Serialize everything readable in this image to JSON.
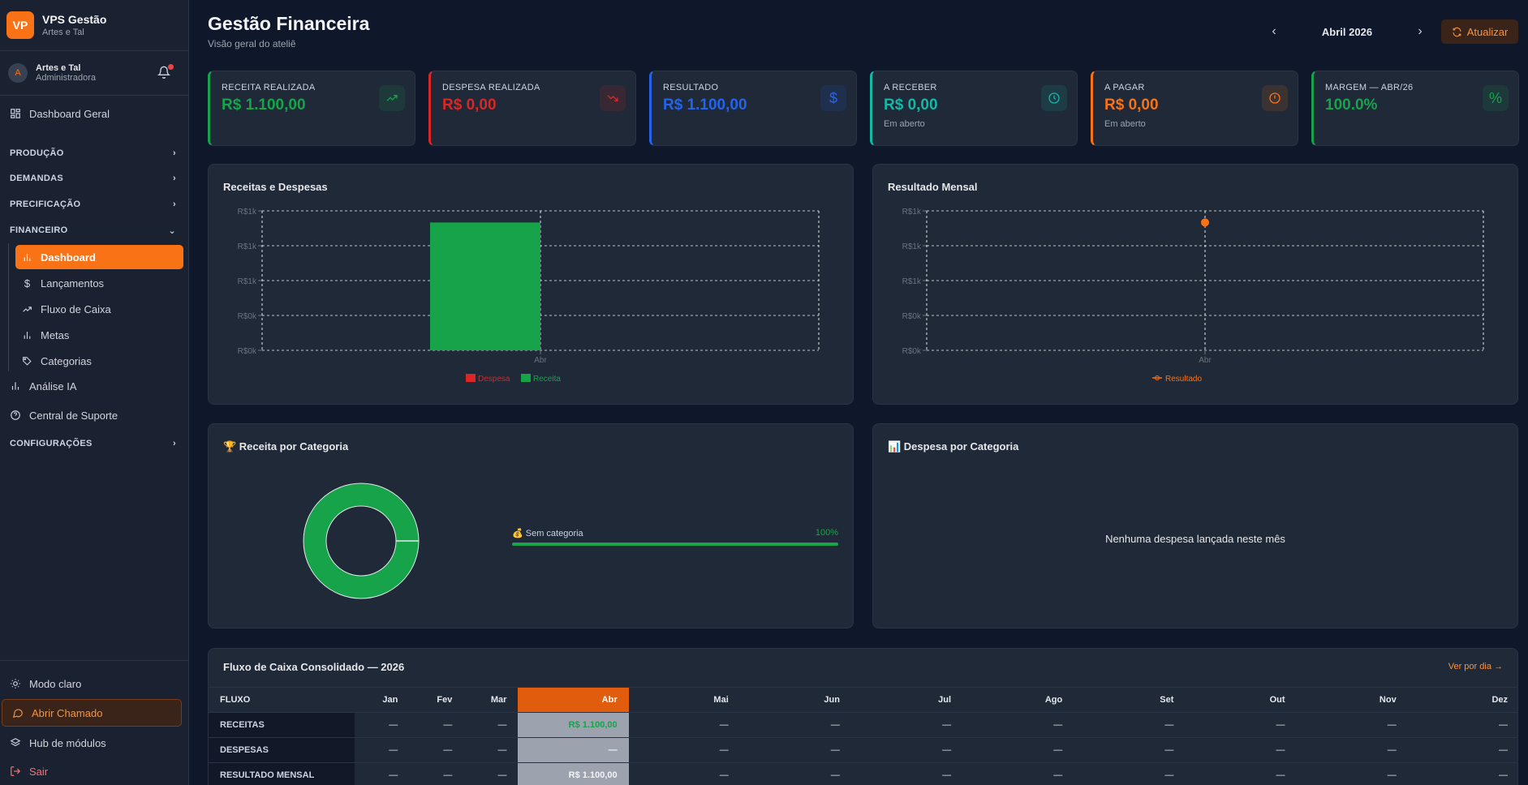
{
  "brand": {
    "logo": "VP",
    "title": "VPS Gestão",
    "subtitle": "Artes e Tal"
  },
  "user": {
    "initial": "A",
    "name": "Artes e Tal",
    "role": "Administradora"
  },
  "nav": {
    "dashboard_geral": "Dashboard Geral",
    "sections": {
      "producao": "PRODUÇÃO",
      "demandas": "DEMANDAS",
      "precificacao": "PRECIFICAÇÃO",
      "financeiro": "FINANCEIRO",
      "configuracoes": "CONFIGURAÇÕES"
    },
    "financeiro_items": [
      "Dashboard",
      "Lançamentos",
      "Fluxo de Caixa",
      "Metas",
      "Categorias"
    ],
    "analise_ia": "Análise IA",
    "suporte": "Central de Suporte"
  },
  "footer": {
    "modo": "Modo claro",
    "chamado": "Abrir Chamado",
    "hub": "Hub de módulos",
    "sair": "Sair"
  },
  "header": {
    "title": "Gestão Financeira",
    "subtitle": "Visão geral do ateliê",
    "month": "Abril 2026",
    "refresh": "Atualizar"
  },
  "kpis": [
    {
      "label": "RECEITA REALIZADA",
      "value": "R$ 1.100,00",
      "sub": "",
      "color": "#16a34a",
      "icon": "trending-up-icon"
    },
    {
      "label": "DESPESA REALIZADA",
      "value": "R$ 0,00",
      "sub": "",
      "color": "#dc2626",
      "icon": "trending-down-icon"
    },
    {
      "label": "RESULTADO",
      "value": "R$ 1.100,00",
      "sub": "",
      "color": "#2563eb",
      "icon": "dollar-icon"
    },
    {
      "label": "A RECEBER",
      "value": "R$ 0,00",
      "sub": "Em aberto",
      "color": "#14b8a6",
      "icon": "clock-icon"
    },
    {
      "label": "A PAGAR",
      "value": "R$ 0,00",
      "sub": "Em aberto",
      "color": "#f97316",
      "icon": "alert-icon"
    },
    {
      "label": "MARGEM — ABR/26",
      "value": "100.0%",
      "sub": "",
      "color": "#16a34a",
      "icon": "percent-icon"
    }
  ],
  "charts": {
    "receitas_despesas": {
      "title": "Receitas e Despesas",
      "chart_data": {
        "type": "bar",
        "categories": [
          "Abr"
        ],
        "series": [
          {
            "name": "Despesa",
            "values": [
              0
            ],
            "color": "#dc2626"
          },
          {
            "name": "Receita",
            "values": [
              1100
            ],
            "color": "#16a34a"
          }
        ],
        "y_ticks": [
          "R$1k",
          "R$1k",
          "R$1k",
          "R$0k",
          "R$0k"
        ],
        "ylim": [
          0,
          1200
        ]
      }
    },
    "resultado_mensal": {
      "title": "Resultado Mensal",
      "chart_data": {
        "type": "line",
        "categories": [
          "Abr"
        ],
        "series": [
          {
            "name": "Resultado",
            "values": [
              1100
            ],
            "color": "#f97316"
          }
        ],
        "y_ticks": [
          "R$1k",
          "R$1k",
          "R$1k",
          "R$0k",
          "R$0k"
        ],
        "ylim": [
          0,
          1200
        ]
      }
    }
  },
  "receita_categoria": {
    "title": "🏆 Receita por Categoria",
    "items": [
      {
        "label": "💰 Sem categoria",
        "percent": "100%",
        "share": 100
      }
    ]
  },
  "despesa_categoria": {
    "title": "📊 Despesa por Categoria",
    "empty": "Nenhuma despesa lançada neste mês"
  },
  "fluxo": {
    "title": "Fluxo de Caixa Consolidado — 2026",
    "link": "Ver por dia →",
    "headers": [
      "FLUXO",
      "Jan",
      "Fev",
      "Mar",
      "Abr",
      "Mai",
      "Jun",
      "Jul",
      "Ago",
      "Set",
      "Out",
      "Nov",
      "Dez"
    ],
    "rows": [
      [
        "RECEITAS",
        "—",
        "—",
        "—",
        "R$ 1.100,00",
        "—",
        "—",
        "—",
        "—",
        "—",
        "—",
        "—",
        "—"
      ],
      [
        "DESPESAS",
        "—",
        "—",
        "—",
        "—",
        "—",
        "—",
        "—",
        "—",
        "—",
        "—",
        "—",
        "—"
      ],
      [
        "RESULTADO MENSAL",
        "—",
        "—",
        "—",
        "R$ 1.100,00",
        "—",
        "—",
        "—",
        "—",
        "—",
        "—",
        "—",
        "—"
      ]
    ]
  }
}
